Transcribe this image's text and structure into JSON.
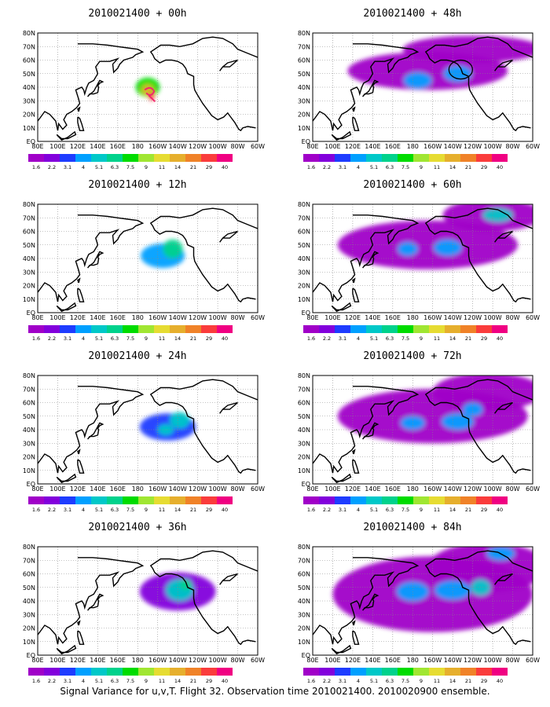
{
  "footer": "Signal Variance for u,v,T. Flight 32. Observation time 2010021400. 2010020900 ensemble.",
  "colorbar": {
    "labels": [
      "1.6",
      "2.2",
      "3.1",
      "4",
      "5.1",
      "6.3",
      "7.5",
      "9",
      "11",
      "14",
      "21",
      "29",
      "40"
    ],
    "colors": [
      "#a000c8",
      "#8200dc",
      "#1e3cff",
      "#00a0ff",
      "#00c8c8",
      "#00d28c",
      "#00dc00",
      "#a0e632",
      "#e6dc32",
      "#e6af2d",
      "#f08228",
      "#fa3c3c",
      "#f00082"
    ]
  },
  "axes": {
    "lon_ticks": [
      "80E",
      "100E",
      "120E",
      "140E",
      "160E",
      "180",
      "160W",
      "140W",
      "120W",
      "100W",
      "80W",
      "60W"
    ],
    "lat_ticks": [
      "80N",
      "70N",
      "60N",
      "50N",
      "40N",
      "30N",
      "20N",
      "10N",
      "EQ"
    ]
  },
  "chart_data": [
    {
      "type": "heatmap",
      "title": "2010021400 + 00h",
      "lead_hours": 0,
      "blobs": [
        [
          190,
          40,
          12,
          7,
          6
        ],
        [
          190,
          38,
          6,
          4,
          9
        ],
        [
          194,
          33,
          3,
          3,
          11
        ]
      ],
      "circle": null
    },
    {
      "type": "heatmap",
      "title": "2010021400 + 12h",
      "lead_hours": 12,
      "blobs": [
        [
          205,
          42,
          22,
          9,
          3
        ],
        [
          215,
          47,
          10,
          7,
          5
        ]
      ],
      "circle": null
    },
    {
      "type": "heatmap",
      "title": "2010021400 + 24h",
      "lead_hours": 24,
      "blobs": [
        [
          210,
          42,
          28,
          10,
          2
        ],
        [
          222,
          47,
          10,
          6,
          4
        ],
        [
          208,
          40,
          8,
          4,
          4
        ]
      ],
      "circle": null
    },
    {
      "type": "heatmap",
      "title": "2010021400 + 36h",
      "lead_hours": 36,
      "blobs": [
        [
          220,
          47,
          38,
          14,
          1
        ],
        [
          222,
          48,
          14,
          8,
          4
        ],
        [
          228,
          52,
          6,
          4,
          5
        ]
      ],
      "circle": null
    },
    {
      "type": "heatmap",
      "title": "2010021400 + 48h",
      "lead_hours": 48,
      "blobs": [
        [
          195,
          52,
          80,
          14,
          0
        ],
        [
          240,
          68,
          70,
          10,
          0
        ],
        [
          185,
          45,
          14,
          6,
          3
        ],
        [
          225,
          50,
          14,
          6,
          3
        ]
      ],
      "circle": {
        "lon": 228,
        "lat": 53
      }
    },
    {
      "type": "heatmap",
      "title": "2010021400 + 60h",
      "lead_hours": 60,
      "blobs": [
        [
          195,
          50,
          90,
          18,
          0
        ],
        [
          260,
          72,
          50,
          12,
          0
        ],
        [
          175,
          47,
          10,
          5,
          3
        ],
        [
          215,
          48,
          14,
          6,
          3
        ],
        [
          265,
          72,
          15,
          5,
          4
        ]
      ],
      "circle": null
    },
    {
      "type": "heatmap",
      "title": "2010021400 + 72h",
      "lead_hours": 72,
      "blobs": [
        [
          200,
          50,
          95,
          20,
          0
        ],
        [
          255,
          68,
          55,
          14,
          0
        ],
        [
          180,
          45,
          12,
          5,
          3
        ],
        [
          225,
          46,
          16,
          6,
          3
        ],
        [
          240,
          55,
          10,
          5,
          3
        ]
      ],
      "circle": null
    },
    {
      "type": "heatmap",
      "title": "2010021400 + 84h",
      "lead_hours": 84,
      "blobs": [
        [
          200,
          45,
          100,
          28,
          0
        ],
        [
          255,
          65,
          60,
          18,
          0
        ],
        [
          180,
          47,
          16,
          7,
          3
        ],
        [
          220,
          48,
          18,
          7,
          3
        ],
        [
          248,
          50,
          10,
          6,
          4
        ],
        [
          268,
          75,
          14,
          5,
          3
        ]
      ],
      "circle": null
    }
  ]
}
